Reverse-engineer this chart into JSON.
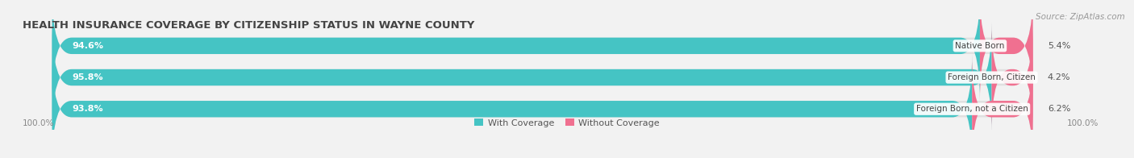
{
  "title": "HEALTH INSURANCE COVERAGE BY CITIZENSHIP STATUS IN WAYNE COUNTY",
  "source": "Source: ZipAtlas.com",
  "categories": [
    "Native Born",
    "Foreign Born, Citizen",
    "Foreign Born, not a Citizen"
  ],
  "with_coverage": [
    94.6,
    95.8,
    93.8
  ],
  "without_coverage": [
    5.4,
    4.2,
    6.2
  ],
  "color_with": "#45c4c4",
  "color_without": "#f07090",
  "bg_color": "#f2f2f2",
  "bar_bg_color": "#e0e0e0",
  "title_fontsize": 9.5,
  "label_fontsize": 8.0,
  "cat_fontsize": 7.5,
  "tick_fontsize": 7.5,
  "source_fontsize": 7.5,
  "bar_height": 0.52,
  "rounding": 2.0
}
